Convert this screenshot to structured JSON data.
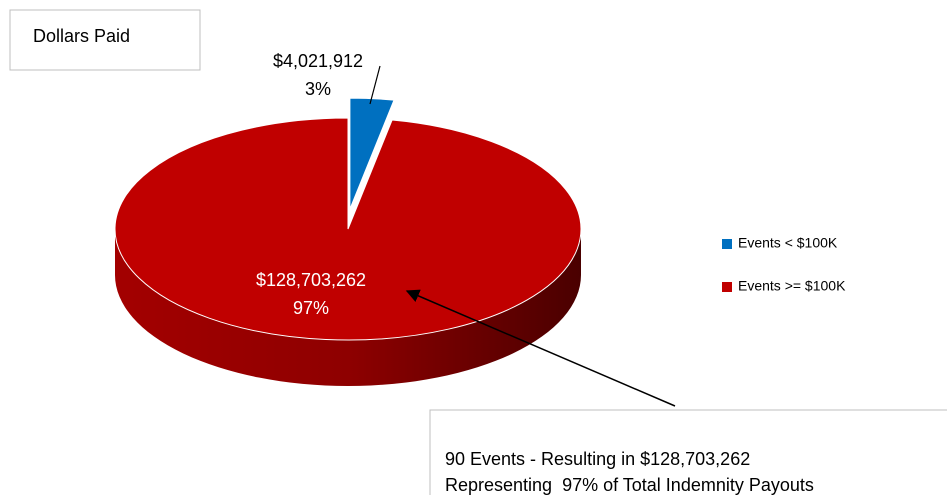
{
  "chart_data": {
    "type": "pie",
    "title": "Dollars Paid",
    "categories": [
      "Events < $100K",
      "Events >= $100K"
    ],
    "values": [
      4021912,
      128703262
    ],
    "value_labels": [
      "$4,021,912",
      "$128,703,262"
    ],
    "percent_labels": [
      "3%",
      "97%"
    ],
    "colors": [
      "#0070c0",
      "#c00000"
    ],
    "legend": "right",
    "annotation": [
      "90 Events - Resulting in $128,703,262",
      "Representing  97% of Total Indemnity Payouts"
    ]
  }
}
